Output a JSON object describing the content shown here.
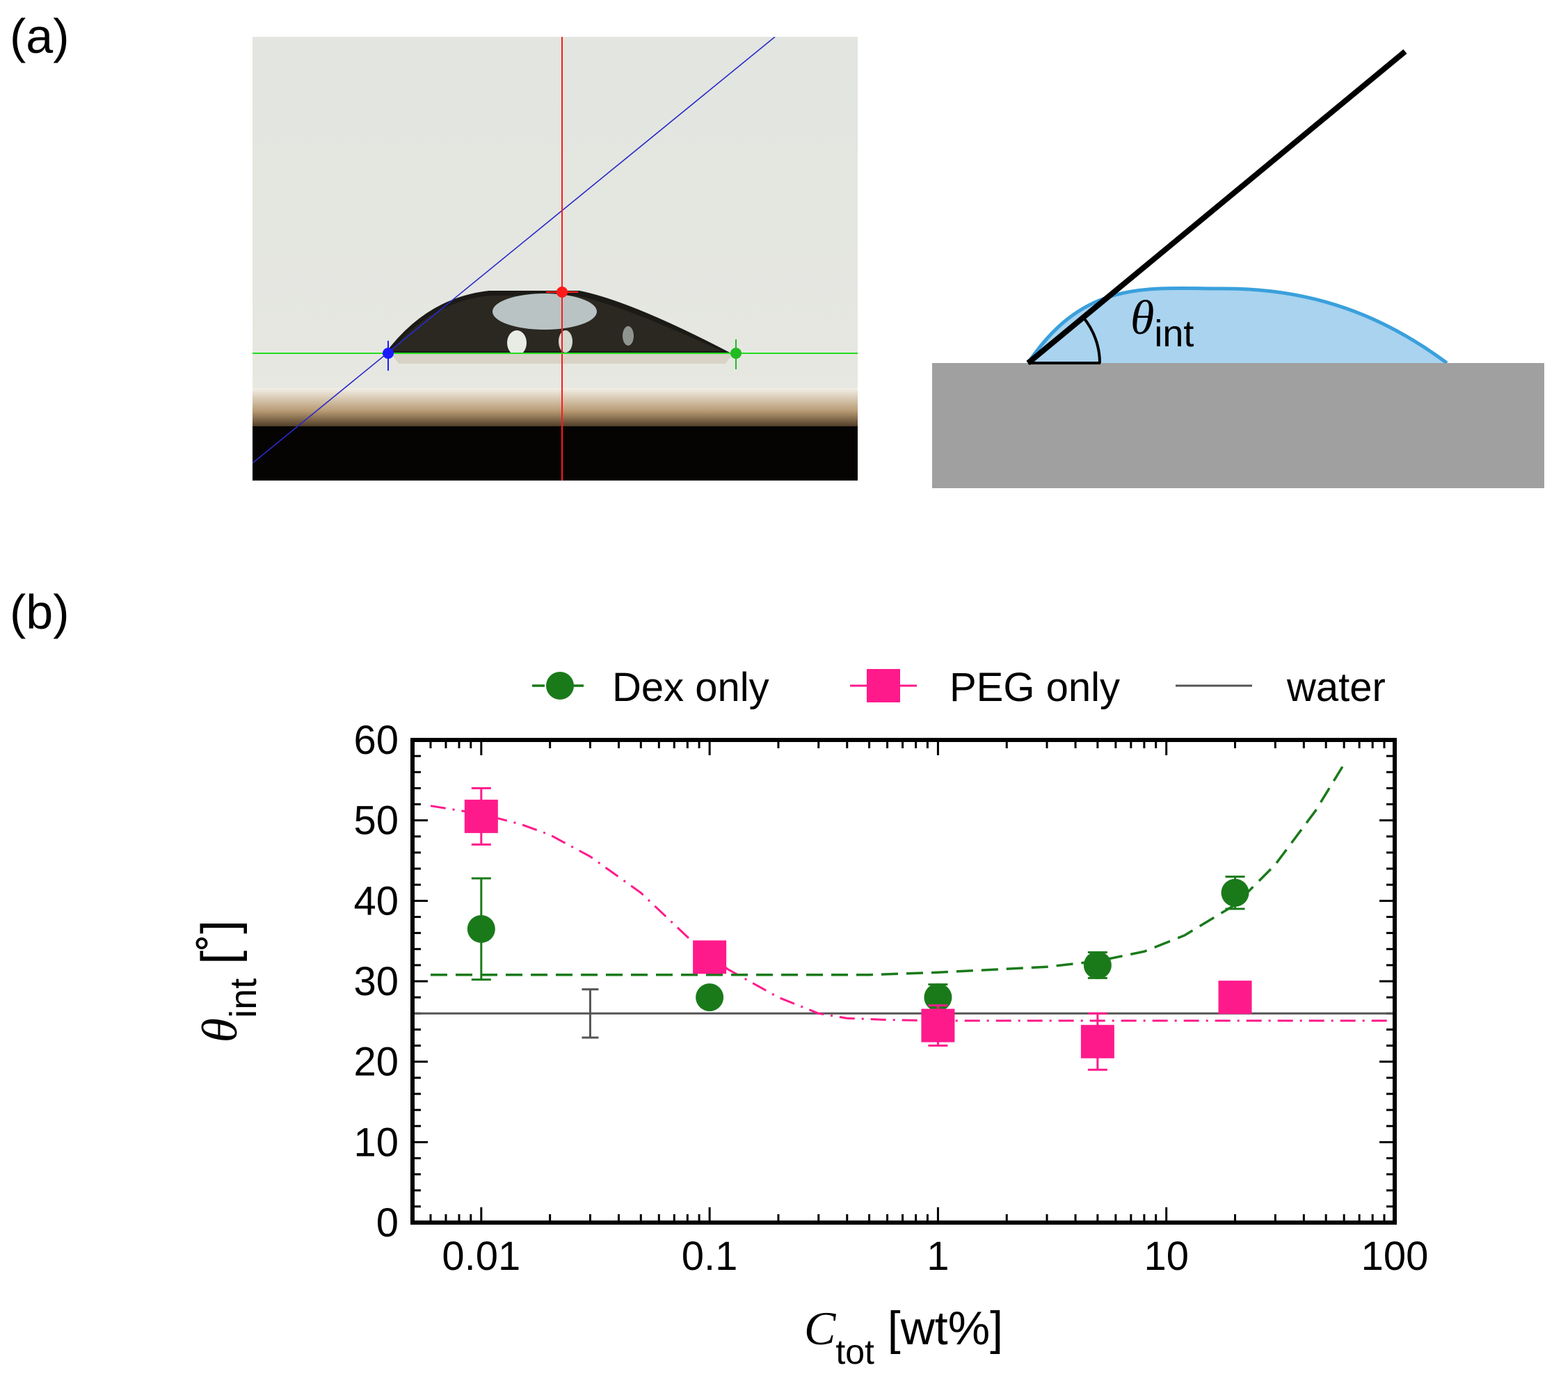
{
  "panels": {
    "a_label": "(a)",
    "b_label": "(b)"
  },
  "schematic": {
    "theta_symbol": "θ",
    "theta_subscript": "int"
  },
  "colors": {
    "dex": "#1a7a1a",
    "peg": "#ff1a8c",
    "water": "#555555",
    "drop_fill": "#a9d3ef",
    "drop_edge": "#3aa0dc",
    "substrate": "#a0a0a0"
  },
  "chart_data": {
    "type": "scatter",
    "xscale": "log",
    "xlim": [
      0.005,
      100
    ],
    "ylim": [
      0,
      60
    ],
    "ylabel": {
      "symbol": "θ",
      "subscript": "int",
      "unit": "[˚]"
    },
    "xlabel": {
      "symbol": "C",
      "subscript": "tot",
      "unit": "[wt%]"
    },
    "xticks": [
      {
        "value": 0.01,
        "label": "0.01"
      },
      {
        "value": 0.1,
        "label": "0.1"
      },
      {
        "value": 1,
        "label": "1"
      },
      {
        "value": 10,
        "label": "10"
      },
      {
        "value": 100,
        "label": "100"
      }
    ],
    "yticks": [
      {
        "value": 0,
        "label": "0"
      },
      {
        "value": 10,
        "label": "10"
      },
      {
        "value": 20,
        "label": "20"
      },
      {
        "value": 30,
        "label": "30"
      },
      {
        "value": 40,
        "label": "40"
      },
      {
        "value": 50,
        "label": "50"
      },
      {
        "value": 60,
        "label": "60"
      }
    ],
    "legend": {
      "placement": "top",
      "entries": [
        "Dex only",
        "PEG only",
        "water"
      ]
    },
    "series": [
      {
        "name": "Dex only",
        "marker": "circle",
        "points": [
          {
            "x": 0.01,
            "y": 36.5,
            "err": 6.3
          },
          {
            "x": 0.1,
            "y": 28.0,
            "err": 0.9
          },
          {
            "x": 1,
            "y": 28.0,
            "err": 1.6
          },
          {
            "x": 5,
            "y": 32.0,
            "err": 1.6
          },
          {
            "x": 20,
            "y": 41.0,
            "err": 2.0
          }
        ],
        "fit": [
          [
            0.006,
            30.8
          ],
          [
            0.5,
            30.8
          ],
          [
            1,
            31.1
          ],
          [
            3,
            31.8
          ],
          [
            5,
            32.5
          ],
          [
            8,
            33.7
          ],
          [
            12,
            35.7
          ],
          [
            20,
            39.5
          ],
          [
            30,
            44.5
          ],
          [
            45,
            51.2
          ],
          [
            60,
            57.0
          ]
        ]
      },
      {
        "name": "PEG only",
        "marker": "square",
        "points": [
          {
            "x": 0.01,
            "y": 50.5,
            "err": 3.5
          },
          {
            "x": 0.1,
            "y": 33.0,
            "err": 1.5
          },
          {
            "x": 1,
            "y": 24.5,
            "err": 2.5
          },
          {
            "x": 5,
            "y": 22.5,
            "err": 3.5
          },
          {
            "x": 20,
            "y": 28.0,
            "err": 1.0
          }
        ],
        "fit": [
          [
            0.006,
            51.8
          ],
          [
            0.01,
            50.8
          ],
          [
            0.015,
            49.5
          ],
          [
            0.02,
            48.2
          ],
          [
            0.03,
            45.5
          ],
          [
            0.05,
            41.0
          ],
          [
            0.08,
            35.5
          ],
          [
            0.12,
            31.5
          ],
          [
            0.2,
            28.0
          ],
          [
            0.3,
            26.0
          ],
          [
            0.4,
            25.4
          ],
          [
            0.6,
            25.2
          ],
          [
            1,
            25.1
          ],
          [
            100,
            25.1
          ]
        ]
      },
      {
        "name": "water",
        "marker": "line",
        "y": 26.0,
        "errorbar": {
          "x": 0.03,
          "y": 26.0,
          "err": 3.0
        }
      }
    ]
  }
}
